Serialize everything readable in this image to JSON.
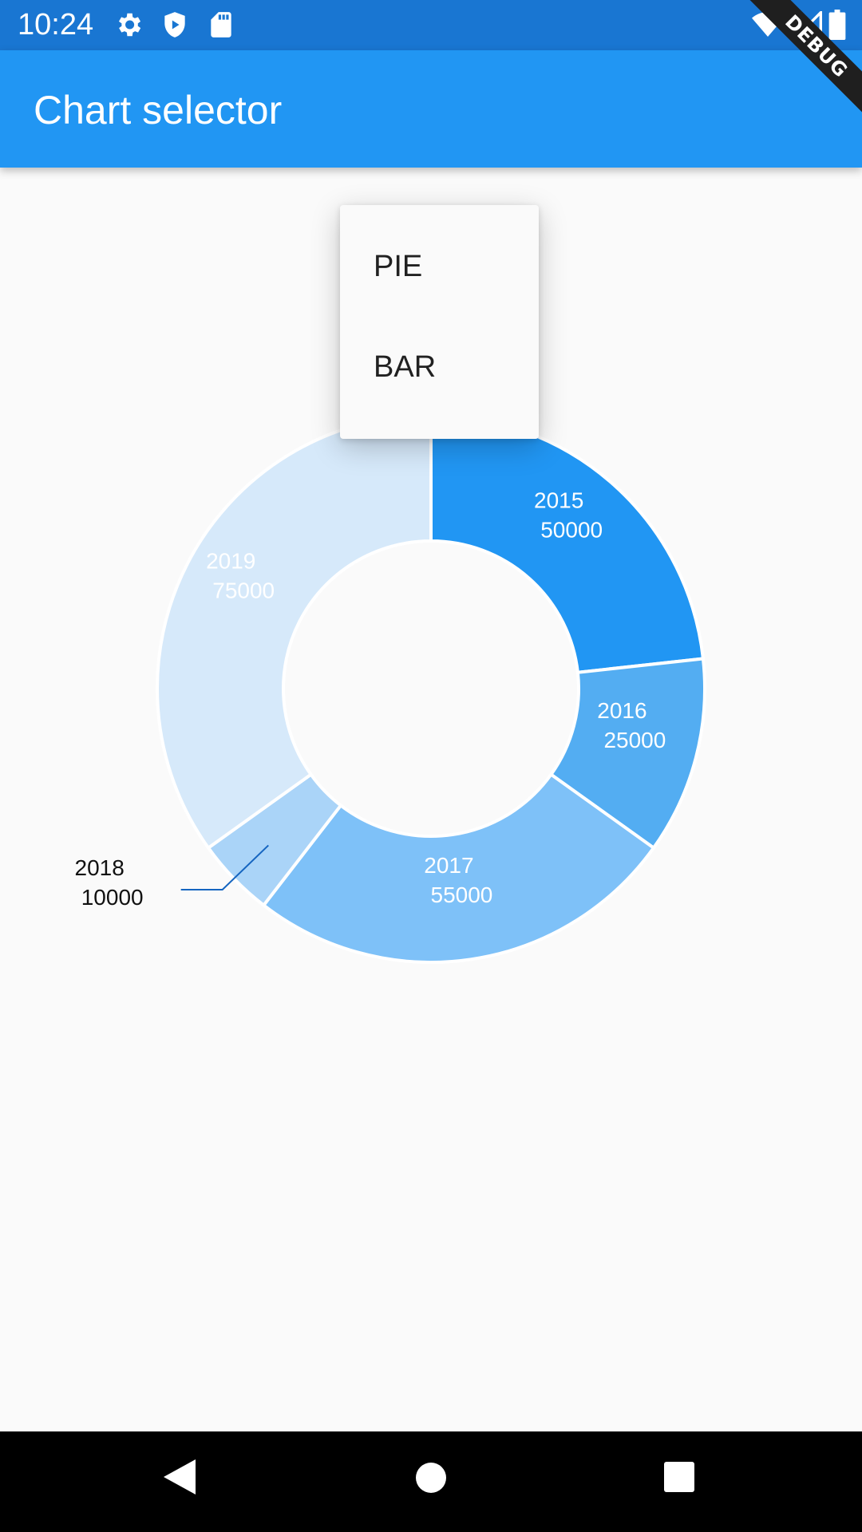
{
  "status_bar": {
    "time": "10:24",
    "left_icons": [
      "gear-icon",
      "shield-icon",
      "sd-card-icon"
    ],
    "right_icons": [
      "wifi-icon",
      "signal-icon",
      "battery-icon"
    ]
  },
  "app_bar": {
    "title": "Chart selector"
  },
  "debug_banner": {
    "label": "DEBUG"
  },
  "menu": {
    "items": [
      {
        "label": "PIE"
      },
      {
        "label": "BAR"
      }
    ]
  },
  "chart_data": {
    "type": "pie",
    "style": "donut",
    "categories": [
      "2015",
      "2016",
      "2017",
      "2018",
      "2019"
    ],
    "values": [
      50000,
      25000,
      55000,
      10000,
      75000
    ],
    "labels": [
      {
        "year": "2015",
        "value": "50000"
      },
      {
        "year": "2016",
        "value": "25000"
      },
      {
        "year": "2017",
        "value": "55000"
      },
      {
        "year": "2018",
        "value": "10000"
      },
      {
        "year": "2019",
        "value": "75000"
      }
    ],
    "colors": [
      "#2196f3",
      "#53adf2",
      "#7ec1f8",
      "#aad4f8",
      "#d6e9fa"
    ],
    "title": ""
  },
  "nav_bar": {
    "buttons": [
      "back-icon",
      "home-icon",
      "recents-icon"
    ]
  },
  "colors": {
    "status_bar": "#1976d2",
    "app_bar": "#2196f3",
    "background": "#fafafa"
  }
}
